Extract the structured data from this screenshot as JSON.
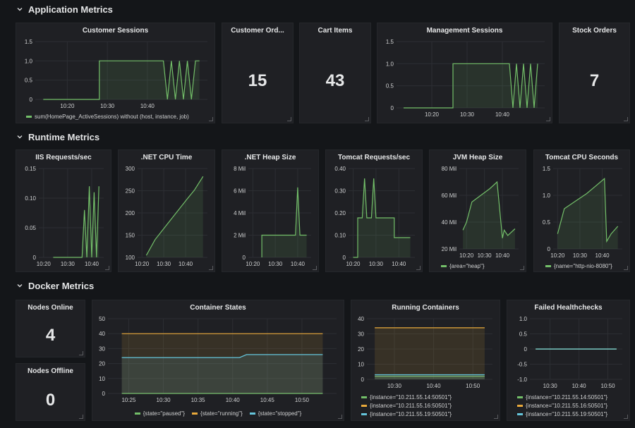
{
  "colors": {
    "green": "#73bf69",
    "orange": "#e8a93b",
    "cyan": "#65c5db",
    "grid": "#2c2e33",
    "axis": "#cfd0d1"
  },
  "rows": [
    {
      "title": "Application Metrics"
    },
    {
      "title": "Runtime Metrics"
    },
    {
      "title": "Docker Metrics"
    }
  ],
  "panels": {
    "customer_sessions": {
      "title": "Customer Sessions",
      "legend": [
        "sum(HomePage_ActiveSessions) without (host, instance, job)"
      ]
    },
    "customer_orders": {
      "title": "Customer Ord...",
      "value": "15"
    },
    "cart_items": {
      "title": "Cart Items",
      "value": "43"
    },
    "management_sessions": {
      "title": "Management Sessions"
    },
    "stock_orders": {
      "title": "Stock Orders",
      "value": "7"
    },
    "iis_requests": {
      "title": "IIS Requests/sec"
    },
    "net_cpu": {
      "title": ".NET CPU Time"
    },
    "net_heap": {
      "title": ".NET Heap Size"
    },
    "tomcat_requests": {
      "title": "Tomcat Requests/sec"
    },
    "jvm_heap": {
      "title": "JVM Heap Size",
      "legend": [
        "{area=\"heap\"}"
      ]
    },
    "tomcat_cpu": {
      "title": "Tomcat CPU Seconds",
      "legend": [
        "{name=\"http-nio-8080\"}"
      ]
    },
    "nodes_online": {
      "title": "Nodes Online",
      "value": "4"
    },
    "nodes_offline": {
      "title": "Nodes Offline",
      "value": "0"
    },
    "container_states": {
      "title": "Container States",
      "legend": [
        "{state=\"paused\"}",
        "{state=\"running\"}",
        "{state=\"stopped\"}"
      ]
    },
    "running_containers": {
      "title": "Running Containers",
      "legend": [
        "{instance=\"10.211.55.14:50501\"}",
        "{instance=\"10.211.55.16:50501\"}",
        "{instance=\"10.211.55.19:50501\"}"
      ]
    },
    "failed_healthchecks": {
      "title": "Failed Healthchecks",
      "legend": [
        "{instance=\"10.211.55.14:50501\"}",
        "{instance=\"10.211.55.16:50501\"}",
        "{instance=\"10.211.55.19:50501\"}"
      ]
    }
  },
  "chart_data": [
    {
      "id": "customer_sessions",
      "type": "line",
      "x": [
        "10:14",
        "10:28",
        "10:28",
        "10:44",
        "10:45",
        "10:46",
        "10:47",
        "10:48",
        "10:49",
        "10:50",
        "10:51",
        "10:52",
        "10:53"
      ],
      "xticks": [
        "10:20",
        "10:30",
        "10:40"
      ],
      "ylim": [
        0,
        1.5
      ],
      "yticks": [
        "0",
        "0.5",
        "1.0",
        "1.5"
      ],
      "series": [
        {
          "values": [
            0,
            0,
            1,
            1,
            0,
            1,
            0,
            1,
            0,
            1,
            0,
            1,
            1
          ]
        }
      ]
    },
    {
      "id": "management_sessions",
      "type": "line",
      "x": [
        "10:12",
        "10:26",
        "10:26",
        "10:42",
        "10:43",
        "10:44",
        "10:45",
        "10:46",
        "10:47",
        "10:48",
        "10:49",
        "10:50"
      ],
      "xticks": [
        "10:20",
        "10:30",
        "10:40"
      ],
      "ylim": [
        0,
        1.5
      ],
      "yticks": [
        "0",
        "0.5",
        "1.0",
        "1.5"
      ],
      "series": [
        {
          "values": [
            0,
            0,
            1,
            1,
            0,
            1,
            0,
            1,
            0,
            1,
            0,
            1
          ]
        }
      ]
    },
    {
      "id": "iis_requests",
      "type": "line",
      "x": [
        "10:24",
        "10:36",
        "10:37",
        "10:38",
        "10:39",
        "10:40",
        "10:41",
        "10:42",
        "10:43"
      ],
      "xticks": [
        "10:20",
        "10:30",
        "10:40"
      ],
      "ylim": [
        0,
        0.15
      ],
      "yticks": [
        "0",
        "0.05",
        "0.10",
        "0.15"
      ],
      "series": [
        {
          "values": [
            0,
            0,
            0.08,
            0,
            0.12,
            0,
            0.11,
            0,
            0.12
          ]
        }
      ]
    },
    {
      "id": "net_cpu",
      "type": "line",
      "x": [
        "10:22",
        "10:26",
        "10:31",
        "10:36",
        "10:41",
        "10:44",
        "10:48"
      ],
      "xticks": [
        "10:20",
        "10:30",
        "10:40"
      ],
      "ylim": [
        75,
        300
      ],
      "yticks": [
        "100",
        "150",
        "200",
        "250",
        "300"
      ],
      "series": [
        {
          "values": [
            80,
            120,
            155,
            190,
            225,
            245,
            280
          ]
        }
      ]
    },
    {
      "id": "net_heap",
      "type": "line",
      "x": [
        "10:24",
        "10:24",
        "10:34",
        "10:39",
        "10:40",
        "10:41",
        "10:44"
      ],
      "xticks": [
        "10:20",
        "10:30",
        "10:40"
      ],
      "ylim": [
        0,
        8
      ],
      "yticks": [
        "0",
        "2 Mil",
        "4 Mil",
        "6 Mil",
        "8 Mil"
      ],
      "series": [
        {
          "values": [
            0,
            2,
            2,
            2,
            6.3,
            2,
            2
          ]
        }
      ]
    },
    {
      "id": "tomcat_requests",
      "type": "line",
      "x": [
        "10:20",
        "10:22",
        "10:22",
        "10:24",
        "10:25",
        "10:26",
        "10:28",
        "10:29",
        "10:30",
        "10:38",
        "10:38",
        "10:45"
      ],
      "xticks": [
        "10:20",
        "10:30",
        "10:40"
      ],
      "ylim": [
        0,
        0.45
      ],
      "yticks": [
        "0",
        "0.10",
        "0.20",
        "0.30",
        "0.40"
      ],
      "series": [
        {
          "values": [
            0,
            0,
            0.2,
            0.2,
            0.4,
            0.2,
            0.2,
            0.4,
            0.2,
            0.2,
            0.1,
            0.1
          ]
        }
      ]
    },
    {
      "id": "jvm_heap",
      "type": "line",
      "x": [
        "10:18",
        "10:20",
        "10:23",
        "10:28",
        "10:33",
        "10:37",
        "10:40",
        "10:41",
        "10:43",
        "10:47"
      ],
      "xticks": [
        "10:20",
        "10:30",
        "10:40"
      ],
      "ylim": [
        20,
        80
      ],
      "yticks": [
        "20 Mil",
        "40 Mil",
        "60 Mil",
        "80 Mil"
      ],
      "series": [
        {
          "values": [
            34,
            40,
            55,
            60,
            65,
            70,
            28,
            34,
            30,
            35
          ]
        }
      ]
    },
    {
      "id": "tomcat_cpu",
      "type": "line",
      "x": [
        "10:20",
        "10:23",
        "10:28",
        "10:33",
        "10:37",
        "10:41",
        "10:42",
        "10:44",
        "10:47"
      ],
      "xticks": [
        "10:20",
        "10:30",
        "10:40"
      ],
      "ylim": [
        0,
        1.6
      ],
      "yticks": [
        "0",
        "0.5",
        "1.0",
        "1.5"
      ],
      "series": [
        {
          "values": [
            0.3,
            0.8,
            0.95,
            1.1,
            1.25,
            1.4,
            0.15,
            0.3,
            0.45
          ]
        }
      ]
    },
    {
      "id": "container_states",
      "type": "line",
      "x": [
        "10:24",
        "10:41",
        "10:42",
        "10:53"
      ],
      "xticks": [
        "10:25",
        "10:30",
        "10:35",
        "10:40",
        "10:45",
        "10:50"
      ],
      "ylim": [
        0,
        50
      ],
      "yticks": [
        "0",
        "10",
        "20",
        "30",
        "40",
        "50"
      ],
      "series": [
        {
          "name": "{state=\"paused\"}",
          "values": [
            0,
            0,
            0,
            0
          ]
        },
        {
          "name": "{state=\"running\"}",
          "values": [
            40,
            40,
            40,
            40
          ]
        },
        {
          "name": "{state=\"stopped\"}",
          "values": [
            24,
            24,
            26,
            26
          ]
        }
      ]
    },
    {
      "id": "running_containers",
      "type": "line",
      "x": [
        "10:25",
        "10:53"
      ],
      "xticks": [
        "10:30",
        "10:40",
        "10:50"
      ],
      "ylim": [
        0,
        40
      ],
      "yticks": [
        "0",
        "10",
        "20",
        "30",
        "40"
      ],
      "series": [
        {
          "name": "{instance=\"10.211.55.14:50501\"}",
          "values": [
            2,
            2
          ]
        },
        {
          "name": "{instance=\"10.211.55.16:50501\"}",
          "values": [
            34,
            34
          ]
        },
        {
          "name": "{instance=\"10.211.55.19:50501\"}",
          "values": [
            3,
            3
          ]
        }
      ]
    },
    {
      "id": "failed_healthchecks",
      "type": "line",
      "x": [
        "10:25",
        "10:53"
      ],
      "xticks": [
        "10:30",
        "10:40",
        "10:50"
      ],
      "ylim": [
        -1.0,
        1.0
      ],
      "yticks": [
        "-1.0",
        "-0.5",
        "0",
        "0.5",
        "1.0"
      ],
      "series": [
        {
          "name": "{instance=\"10.211.55.14:50501\"}",
          "values": [
            0,
            0
          ]
        },
        {
          "name": "{instance=\"10.211.55.16:50501\"}",
          "values": [
            0,
            0
          ]
        },
        {
          "name": "{instance=\"10.211.55.19:50501\"}",
          "values": [
            0,
            0
          ]
        }
      ]
    }
  ]
}
